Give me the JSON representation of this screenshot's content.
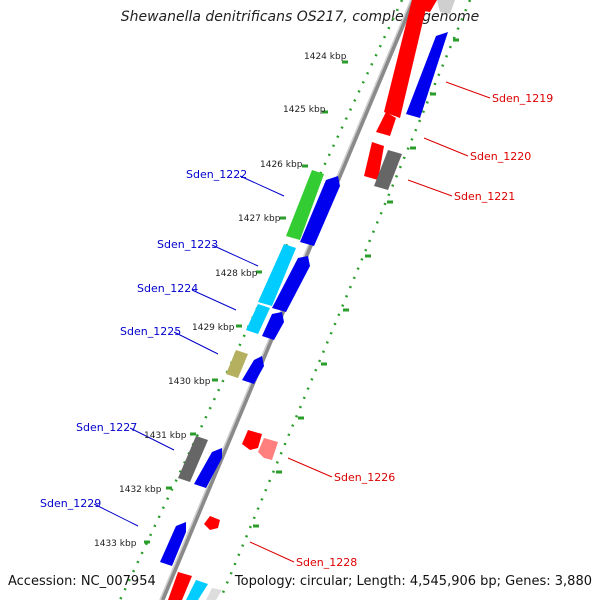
{
  "title": "Shewanella denitrificans OS217, complete genome",
  "accession": "Accession: NC_007954",
  "topology": "Topology: circular; Length: 4,545,906 bp; Genes: 3,880",
  "colors": {
    "background": "#ffffff",
    "backbone": "#8a8a8a",
    "tick_dot": "#2a9d2a",
    "gene_red": "#ff0000",
    "gene_blue": "#0000ee",
    "gene_green": "#33cc33",
    "gene_cyan": "#00ccff",
    "gene_gray": "#666666",
    "gene_olive": "#b5b060",
    "gene_pink": "#ff7f7f",
    "label_left": "#0000cc",
    "label_right": "#dd0000"
  },
  "kbp_labels": [
    "1424 kbp",
    "1425 kbp",
    "1426 kbp",
    "1427 kbp",
    "1428 kbp",
    "1429 kbp",
    "1430 kbp",
    "1431 kbp",
    "1432 kbp",
    "1433 kbp"
  ],
  "gene_labels_left": [
    "Sden_1222",
    "Sden_1223",
    "Sden_1224",
    "Sden_1225",
    "Sden_1227",
    "Sden_1229"
  ],
  "gene_labels_right": [
    "Sden_1219",
    "Sden_1220",
    "Sden_1221",
    "Sden_1226",
    "Sden_1228"
  ]
}
